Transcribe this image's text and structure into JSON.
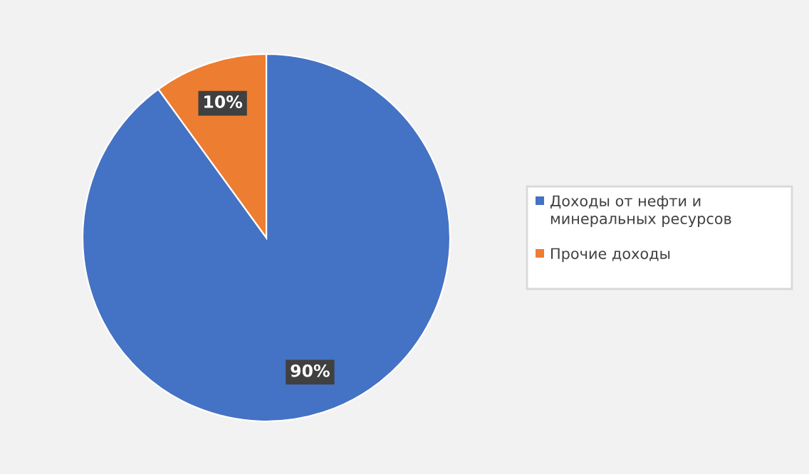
{
  "chart_data": {
    "type": "pie",
    "categories": [
      "Доходы от нефти и минеральных ресурсов",
      "Прочие доходы"
    ],
    "values": [
      90,
      10
    ],
    "colors": [
      "#4472c4",
      "#ed7d31"
    ],
    "value_labels": [
      "90%",
      "10%"
    ],
    "legend": "right"
  }
}
